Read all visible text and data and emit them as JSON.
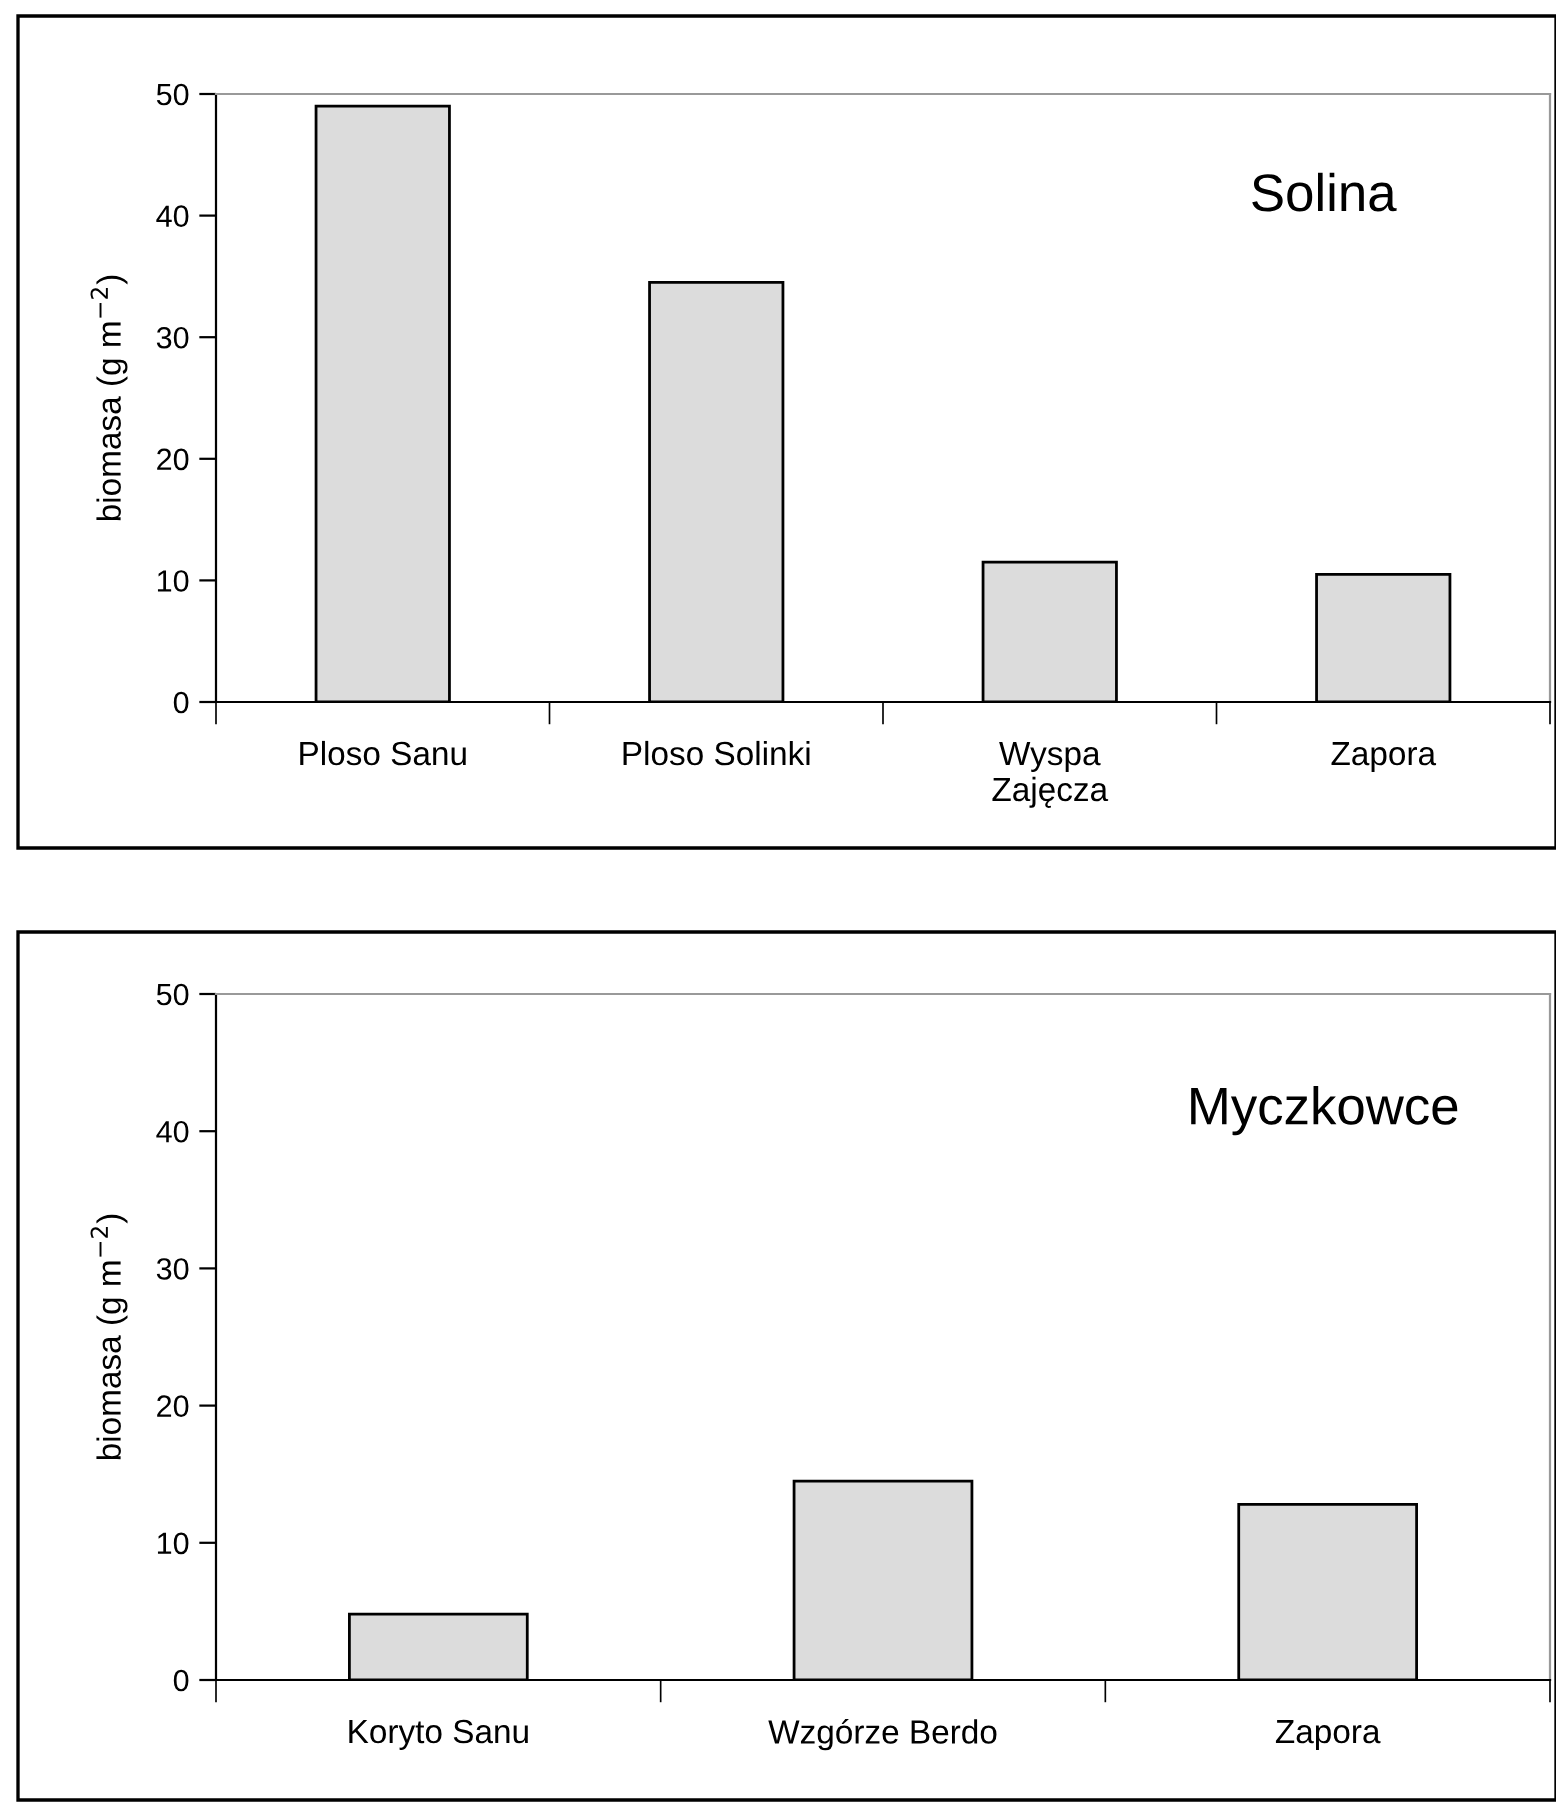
{
  "chart_data": [
    {
      "type": "bar",
      "categories": [
        "Ploso Sanu",
        "Ploso Solinki",
        "Wyspa\nZajęcza",
        "Zapora"
      ],
      "values": [
        49.0,
        34.5,
        11.5,
        10.5
      ],
      "color": "#dcdcdc",
      "ylabel": "biomasa (g m$^{−2}$)",
      "annotations": [
        "Solina"
      ],
      "ylim": [
        0,
        50
      ],
      "yticks": [
        0,
        10,
        20,
        30,
        40,
        50
      ],
      "grid": false,
      "legend": false
    },
    {
      "type": "bar",
      "categories": [
        "Koryto Sanu",
        "Wzgórze Berdo",
        "Zapora"
      ],
      "values": [
        4.8,
        14.5,
        12.8
      ],
      "color": "#dcdcdc",
      "ylabel": "biomasa (g m$^{−2}$)",
      "annotations": [
        "Myczkowce"
      ],
      "ylim": [
        0,
        50
      ],
      "yticks": [
        0,
        10,
        20,
        30,
        40,
        50
      ],
      "grid": false,
      "legend": false
    }
  ]
}
